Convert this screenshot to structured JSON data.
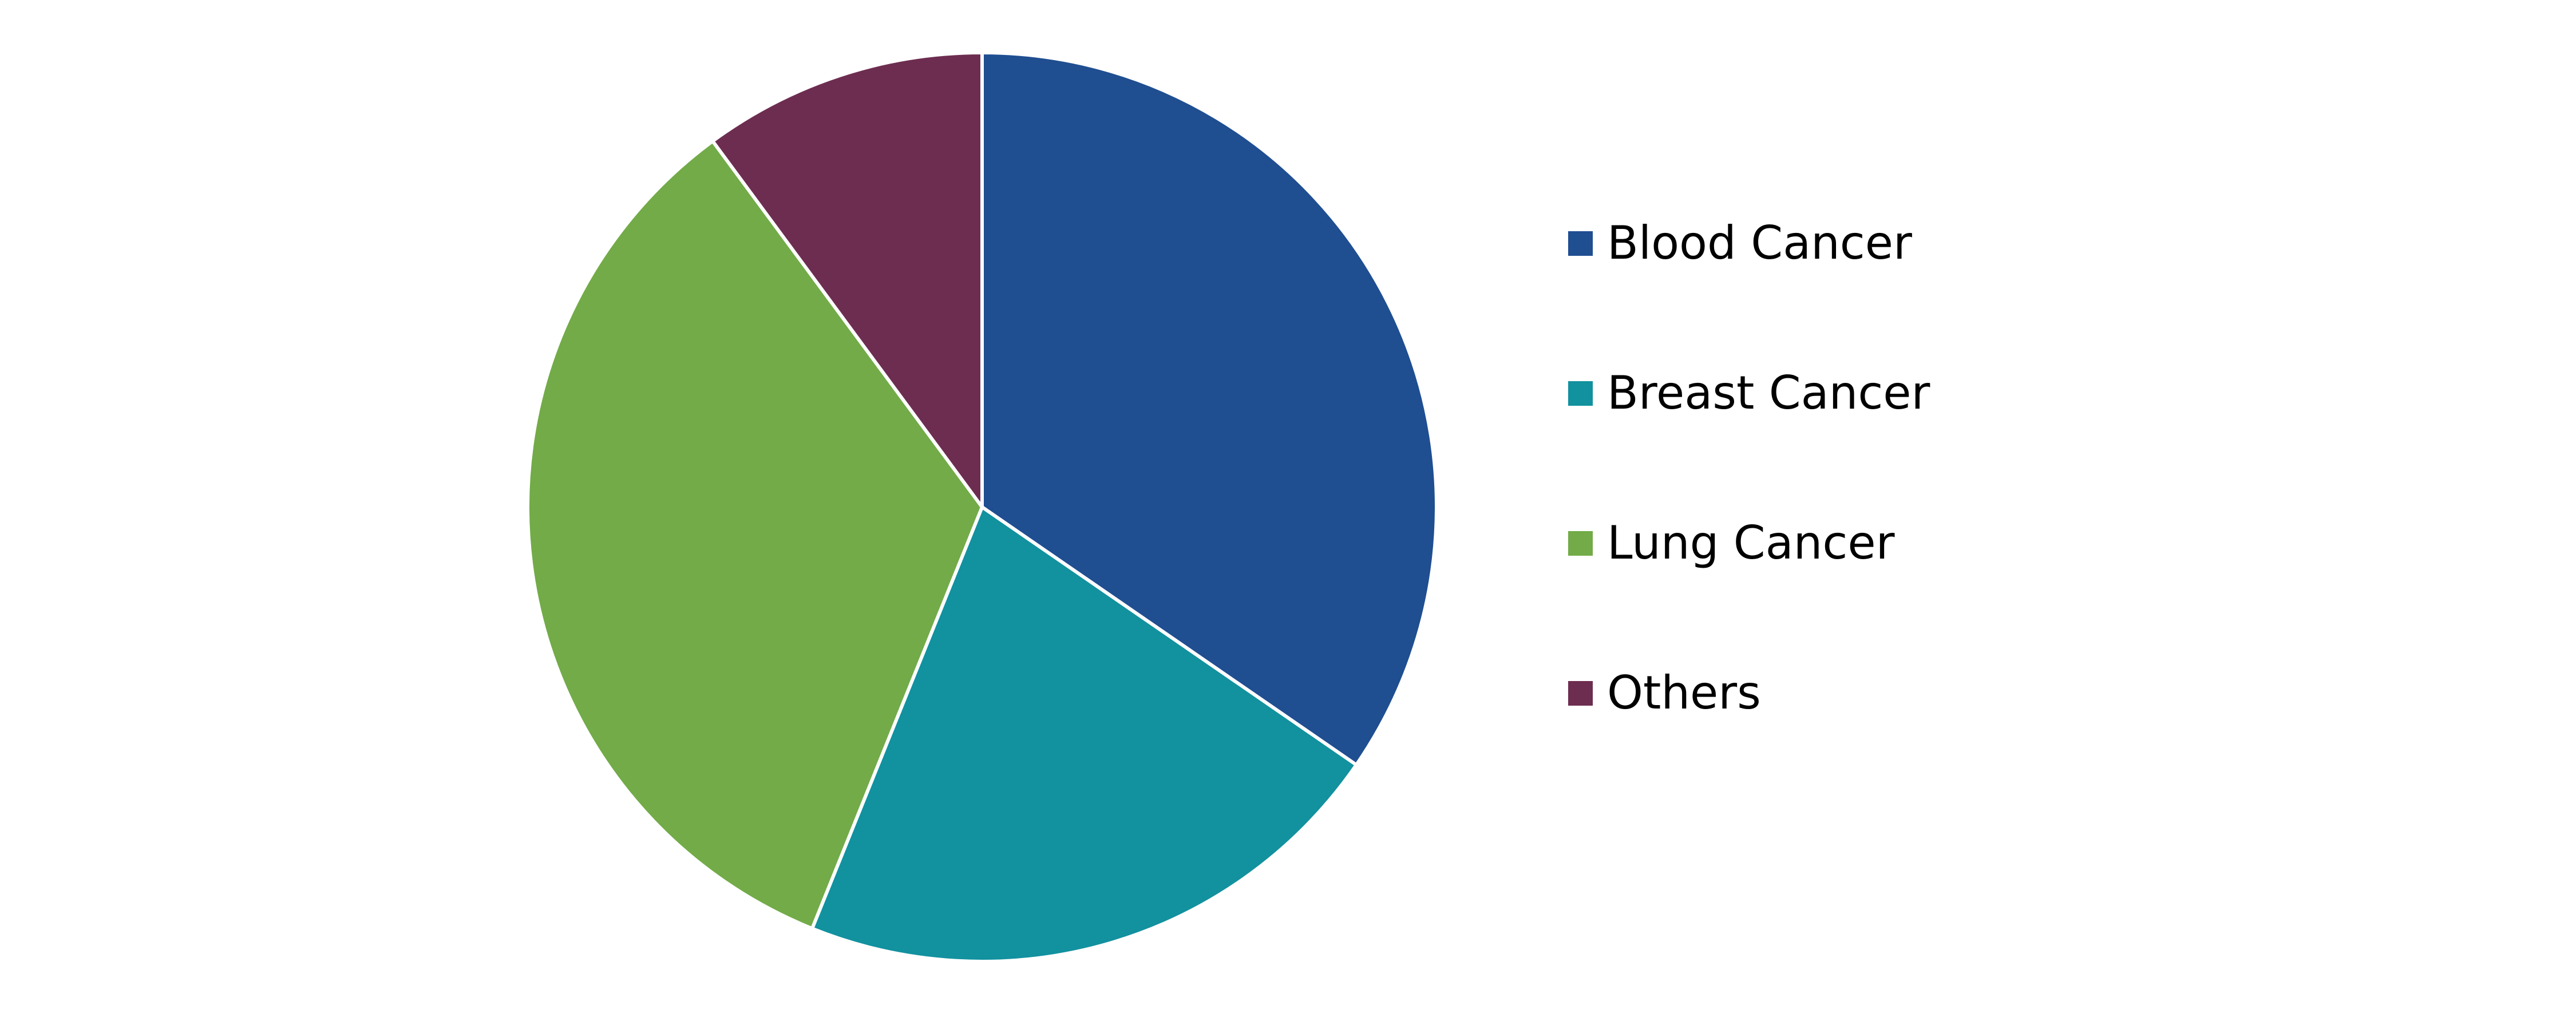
{
  "chart_data": {
    "type": "pie",
    "title": "",
    "categories": [
      "Blood Cancer",
      "Breast Cancer",
      "Lung Cancer",
      "Others"
    ],
    "values": [
      34.6,
      21.5,
      33.8,
      10.1
    ],
    "unit": "%",
    "colors": [
      "#1F4E91",
      "#12919F",
      "#72AB48",
      "#6D2D50"
    ],
    "start_angle_deg": 0,
    "direction": "clockwise",
    "legend_position": "right",
    "show_data_labels": false
  }
}
